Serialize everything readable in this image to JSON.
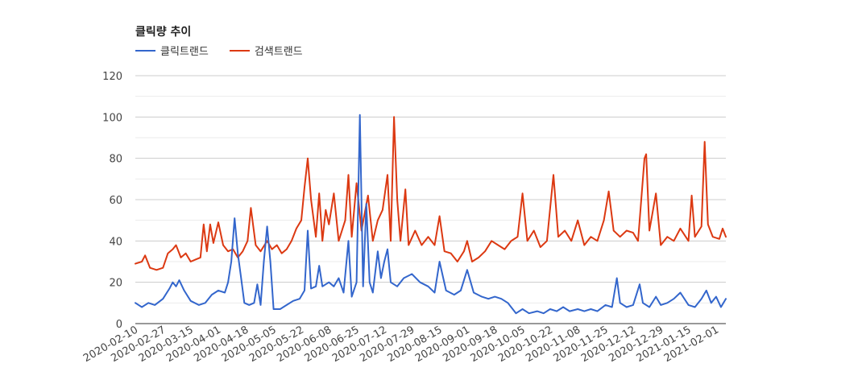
{
  "chart_data": {
    "type": "line",
    "title": "클릭량 추이",
    "ylim": [
      0,
      120
    ],
    "yticks": [
      0,
      20,
      40,
      60,
      80,
      100,
      120
    ],
    "xlim": [
      "2020-02-10",
      "2021-02-07"
    ],
    "xticks": [
      "2020-02-10",
      "2020-02-27",
      "2020-03-15",
      "2020-04-01",
      "2020-04-18",
      "2020-05-05",
      "2020-05-22",
      "2020-06-08",
      "2020-06-25",
      "2020-07-12",
      "2020-07-29",
      "2020-08-15",
      "2020-09-01",
      "2020-09-18",
      "2020-10-05",
      "2020-10-22",
      "2020-11-08",
      "2020-11-25",
      "2020-12-12",
      "2020-12-29",
      "2021-01-15",
      "2021-02-01"
    ],
    "grid": true,
    "legend_position": "top-left",
    "series": [
      {
        "name": "클릭트랜드",
        "color": "#3366cc",
        "points": [
          [
            "2020-02-10",
            10
          ],
          [
            "2020-02-14",
            8
          ],
          [
            "2020-02-18",
            10
          ],
          [
            "2020-02-22",
            9
          ],
          [
            "2020-02-27",
            12
          ],
          [
            "2020-03-02",
            17
          ],
          [
            "2020-03-04",
            20
          ],
          [
            "2020-03-06",
            18
          ],
          [
            "2020-03-08",
            21
          ],
          [
            "2020-03-11",
            16
          ],
          [
            "2020-03-15",
            11
          ],
          [
            "2020-03-20",
            9
          ],
          [
            "2020-03-24",
            10
          ],
          [
            "2020-03-28",
            14
          ],
          [
            "2020-04-01",
            16
          ],
          [
            "2020-04-05",
            15
          ],
          [
            "2020-04-07",
            20
          ],
          [
            "2020-04-09",
            30
          ],
          [
            "2020-04-11",
            51
          ],
          [
            "2020-04-13",
            34
          ],
          [
            "2020-04-15",
            22
          ],
          [
            "2020-04-17",
            10
          ],
          [
            "2020-04-20",
            9
          ],
          [
            "2020-04-23",
            10
          ],
          [
            "2020-04-25",
            19
          ],
          [
            "2020-04-27",
            9
          ],
          [
            "2020-04-29",
            30
          ],
          [
            "2020-05-01",
            47
          ],
          [
            "2020-05-03",
            30
          ],
          [
            "2020-05-05",
            7
          ],
          [
            "2020-05-09",
            7
          ],
          [
            "2020-05-13",
            9
          ],
          [
            "2020-05-17",
            11
          ],
          [
            "2020-05-21",
            12
          ],
          [
            "2020-05-24",
            16
          ],
          [
            "2020-05-26",
            45
          ],
          [
            "2020-05-28",
            17
          ],
          [
            "2020-05-31",
            18
          ],
          [
            "2020-06-02",
            28
          ],
          [
            "2020-06-04",
            18
          ],
          [
            "2020-06-08",
            20
          ],
          [
            "2020-06-11",
            18
          ],
          [
            "2020-06-14",
            22
          ],
          [
            "2020-06-17",
            15
          ],
          [
            "2020-06-20",
            40
          ],
          [
            "2020-06-22",
            13
          ],
          [
            "2020-06-25",
            20
          ],
          [
            "2020-06-27",
            101
          ],
          [
            "2020-06-29",
            18
          ],
          [
            "2020-07-01",
            58
          ],
          [
            "2020-07-03",
            20
          ],
          [
            "2020-07-05",
            15
          ],
          [
            "2020-07-08",
            35
          ],
          [
            "2020-07-10",
            22
          ],
          [
            "2020-07-12",
            30
          ],
          [
            "2020-07-14",
            36
          ],
          [
            "2020-07-16",
            20
          ],
          [
            "2020-07-20",
            18
          ],
          [
            "2020-07-24",
            22
          ],
          [
            "2020-07-29",
            24
          ],
          [
            "2020-08-03",
            20
          ],
          [
            "2020-08-08",
            18
          ],
          [
            "2020-08-12",
            15
          ],
          [
            "2020-08-15",
            30
          ],
          [
            "2020-08-19",
            16
          ],
          [
            "2020-08-24",
            14
          ],
          [
            "2020-08-28",
            16
          ],
          [
            "2020-09-01",
            26
          ],
          [
            "2020-09-05",
            15
          ],
          [
            "2020-09-10",
            13
          ],
          [
            "2020-09-14",
            12
          ],
          [
            "2020-09-18",
            13
          ],
          [
            "2020-09-22",
            12
          ],
          [
            "2020-09-26",
            10
          ],
          [
            "2020-10-01",
            5
          ],
          [
            "2020-10-05",
            7
          ],
          [
            "2020-10-09",
            5
          ],
          [
            "2020-10-14",
            6
          ],
          [
            "2020-10-18",
            5
          ],
          [
            "2020-10-22",
            7
          ],
          [
            "2020-10-26",
            6
          ],
          [
            "2020-10-30",
            8
          ],
          [
            "2020-11-03",
            6
          ],
          [
            "2020-11-08",
            7
          ],
          [
            "2020-11-12",
            6
          ],
          [
            "2020-11-16",
            7
          ],
          [
            "2020-11-20",
            6
          ],
          [
            "2020-11-25",
            9
          ],
          [
            "2020-11-29",
            8
          ],
          [
            "2020-12-02",
            22
          ],
          [
            "2020-12-04",
            10
          ],
          [
            "2020-12-08",
            8
          ],
          [
            "2020-12-12",
            9
          ],
          [
            "2020-12-16",
            19
          ],
          [
            "2020-12-18",
            10
          ],
          [
            "2020-12-22",
            8
          ],
          [
            "2020-12-26",
            13
          ],
          [
            "2020-12-29",
            9
          ],
          [
            "2021-01-02",
            10
          ],
          [
            "2021-01-06",
            12
          ],
          [
            "2021-01-10",
            15
          ],
          [
            "2021-01-15",
            9
          ],
          [
            "2021-01-19",
            8
          ],
          [
            "2021-01-23",
            12
          ],
          [
            "2021-01-26",
            16
          ],
          [
            "2021-01-29",
            10
          ],
          [
            "2021-02-01",
            13
          ],
          [
            "2021-02-04",
            8
          ],
          [
            "2021-02-07",
            12
          ]
        ]
      },
      {
        "name": "검색트랜드",
        "color": "#dc3912",
        "points": [
          [
            "2020-02-10",
            29
          ],
          [
            "2020-02-14",
            30
          ],
          [
            "2020-02-16",
            33
          ],
          [
            "2020-02-19",
            27
          ],
          [
            "2020-02-23",
            26
          ],
          [
            "2020-02-27",
            27
          ],
          [
            "2020-03-01",
            34
          ],
          [
            "2020-03-04",
            36
          ],
          [
            "2020-03-06",
            38
          ],
          [
            "2020-03-09",
            32
          ],
          [
            "2020-03-12",
            34
          ],
          [
            "2020-03-15",
            30
          ],
          [
            "2020-03-18",
            31
          ],
          [
            "2020-03-21",
            32
          ],
          [
            "2020-03-23",
            48
          ],
          [
            "2020-03-25",
            35
          ],
          [
            "2020-03-27",
            48
          ],
          [
            "2020-03-29",
            39
          ],
          [
            "2020-04-01",
            49
          ],
          [
            "2020-04-04",
            38
          ],
          [
            "2020-04-07",
            35
          ],
          [
            "2020-04-10",
            36
          ],
          [
            "2020-04-13",
            32
          ],
          [
            "2020-04-16",
            35
          ],
          [
            "2020-04-19",
            40
          ],
          [
            "2020-04-21",
            56
          ],
          [
            "2020-04-24",
            38
          ],
          [
            "2020-04-27",
            35
          ],
          [
            "2020-05-01",
            40
          ],
          [
            "2020-05-04",
            36
          ],
          [
            "2020-05-07",
            38
          ],
          [
            "2020-05-10",
            34
          ],
          [
            "2020-05-13",
            36
          ],
          [
            "2020-05-16",
            40
          ],
          [
            "2020-05-19",
            46
          ],
          [
            "2020-05-22",
            50
          ],
          [
            "2020-05-24",
            66
          ],
          [
            "2020-05-26",
            80
          ],
          [
            "2020-05-28",
            60
          ],
          [
            "2020-05-31",
            42
          ],
          [
            "2020-06-02",
            63
          ],
          [
            "2020-06-04",
            40
          ],
          [
            "2020-06-06",
            55
          ],
          [
            "2020-06-08",
            48
          ],
          [
            "2020-06-11",
            63
          ],
          [
            "2020-06-14",
            40
          ],
          [
            "2020-06-18",
            50
          ],
          [
            "2020-06-20",
            72
          ],
          [
            "2020-06-22",
            42
          ],
          [
            "2020-06-25",
            68
          ],
          [
            "2020-06-28",
            45
          ],
          [
            "2020-07-02",
            62
          ],
          [
            "2020-07-05",
            40
          ],
          [
            "2020-07-08",
            50
          ],
          [
            "2020-07-11",
            55
          ],
          [
            "2020-07-14",
            72
          ],
          [
            "2020-07-16",
            40
          ],
          [
            "2020-07-18",
            100
          ],
          [
            "2020-07-20",
            60
          ],
          [
            "2020-07-22",
            40
          ],
          [
            "2020-07-25",
            65
          ],
          [
            "2020-07-27",
            38
          ],
          [
            "2020-07-31",
            45
          ],
          [
            "2020-08-04",
            38
          ],
          [
            "2020-08-08",
            42
          ],
          [
            "2020-08-12",
            38
          ],
          [
            "2020-08-15",
            52
          ],
          [
            "2020-08-18",
            35
          ],
          [
            "2020-08-22",
            34
          ],
          [
            "2020-08-26",
            30
          ],
          [
            "2020-08-30",
            35
          ],
          [
            "2020-09-01",
            40
          ],
          [
            "2020-09-04",
            30
          ],
          [
            "2020-09-08",
            32
          ],
          [
            "2020-09-12",
            35
          ],
          [
            "2020-09-16",
            40
          ],
          [
            "2020-09-20",
            38
          ],
          [
            "2020-09-24",
            36
          ],
          [
            "2020-09-28",
            40
          ],
          [
            "2020-10-02",
            42
          ],
          [
            "2020-10-05",
            63
          ],
          [
            "2020-10-08",
            40
          ],
          [
            "2020-10-12",
            45
          ],
          [
            "2020-10-16",
            37
          ],
          [
            "2020-10-20",
            40
          ],
          [
            "2020-10-24",
            72
          ],
          [
            "2020-10-27",
            42
          ],
          [
            "2020-10-31",
            45
          ],
          [
            "2020-11-04",
            40
          ],
          [
            "2020-11-08",
            50
          ],
          [
            "2020-11-12",
            38
          ],
          [
            "2020-11-16",
            42
          ],
          [
            "2020-11-20",
            40
          ],
          [
            "2020-11-24",
            50
          ],
          [
            "2020-11-27",
            64
          ],
          [
            "2020-11-30",
            45
          ],
          [
            "2020-12-04",
            42
          ],
          [
            "2020-12-08",
            45
          ],
          [
            "2020-12-12",
            44
          ],
          [
            "2020-12-15",
            40
          ],
          [
            "2020-12-19",
            80
          ],
          [
            "2020-12-20",
            82
          ],
          [
            "2020-12-22",
            45
          ],
          [
            "2020-12-26",
            63
          ],
          [
            "2020-12-29",
            38
          ],
          [
            "2021-01-02",
            42
          ],
          [
            "2021-01-06",
            40
          ],
          [
            "2021-01-10",
            46
          ],
          [
            "2021-01-15",
            40
          ],
          [
            "2021-01-17",
            62
          ],
          [
            "2021-01-19",
            42
          ],
          [
            "2021-01-23",
            47
          ],
          [
            "2021-01-25",
            88
          ],
          [
            "2021-01-27",
            48
          ],
          [
            "2021-01-30",
            42
          ],
          [
            "2021-02-03",
            41
          ],
          [
            "2021-02-05",
            46
          ],
          [
            "2021-02-07",
            42
          ]
        ]
      }
    ]
  }
}
